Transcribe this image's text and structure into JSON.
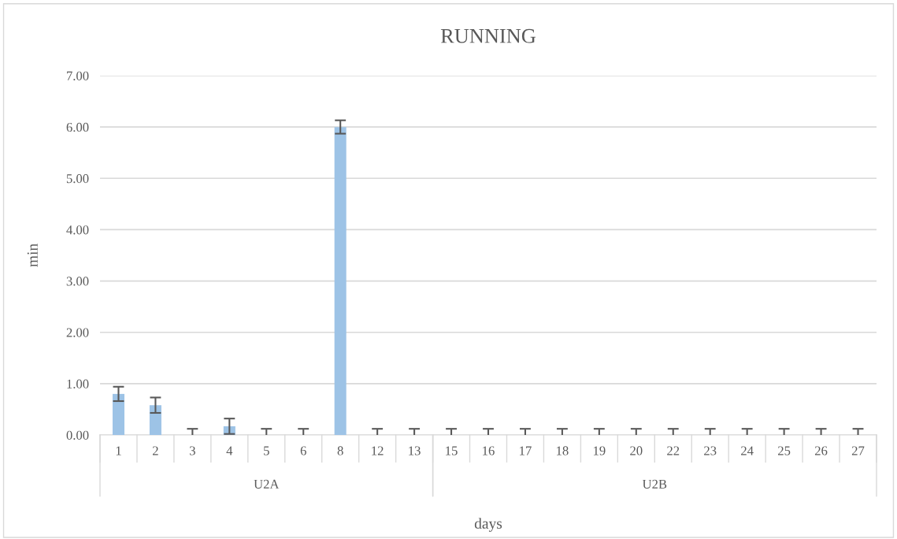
{
  "chart_data": {
    "type": "bar",
    "title": "RUNNING",
    "xlabel": "days",
    "ylabel": "min",
    "categories": [
      "1",
      "2",
      "3",
      "4",
      "5",
      "6",
      "8",
      "12",
      "13",
      "15",
      "16",
      "17",
      "18",
      "19",
      "20",
      "22",
      "23",
      "24",
      "25",
      "26",
      "27"
    ],
    "values": [
      0.8,
      0.58,
      0,
      0.17,
      0,
      0,
      6.0,
      0,
      0,
      0,
      0,
      0,
      0,
      0,
      0,
      0,
      0,
      0,
      0,
      0,
      0
    ],
    "errors": [
      0.14,
      0.15,
      0.12,
      0.15,
      0.12,
      0.12,
      0.13,
      0.12,
      0.12,
      0.12,
      0.12,
      0.12,
      0.12,
      0.12,
      0.12,
      0.12,
      0.12,
      0.12,
      0.12,
      0.12,
      0.12
    ],
    "color": "#9dc3e6",
    "ylim": [
      0,
      7
    ],
    "yticks": [
      {
        "value": 0,
        "label": "0.00"
      },
      {
        "value": 1,
        "label": "1.00"
      },
      {
        "value": 2,
        "label": "2.00"
      },
      {
        "value": 3,
        "label": "3.00"
      },
      {
        "value": 4,
        "label": "4.00"
      },
      {
        "value": 5,
        "label": "5.00"
      },
      {
        "value": 6,
        "label": "6.00"
      },
      {
        "value": 7,
        "label": "7.00"
      }
    ],
    "grid": "y",
    "annotations": [
      "U2A",
      "U2B"
    ]
  }
}
